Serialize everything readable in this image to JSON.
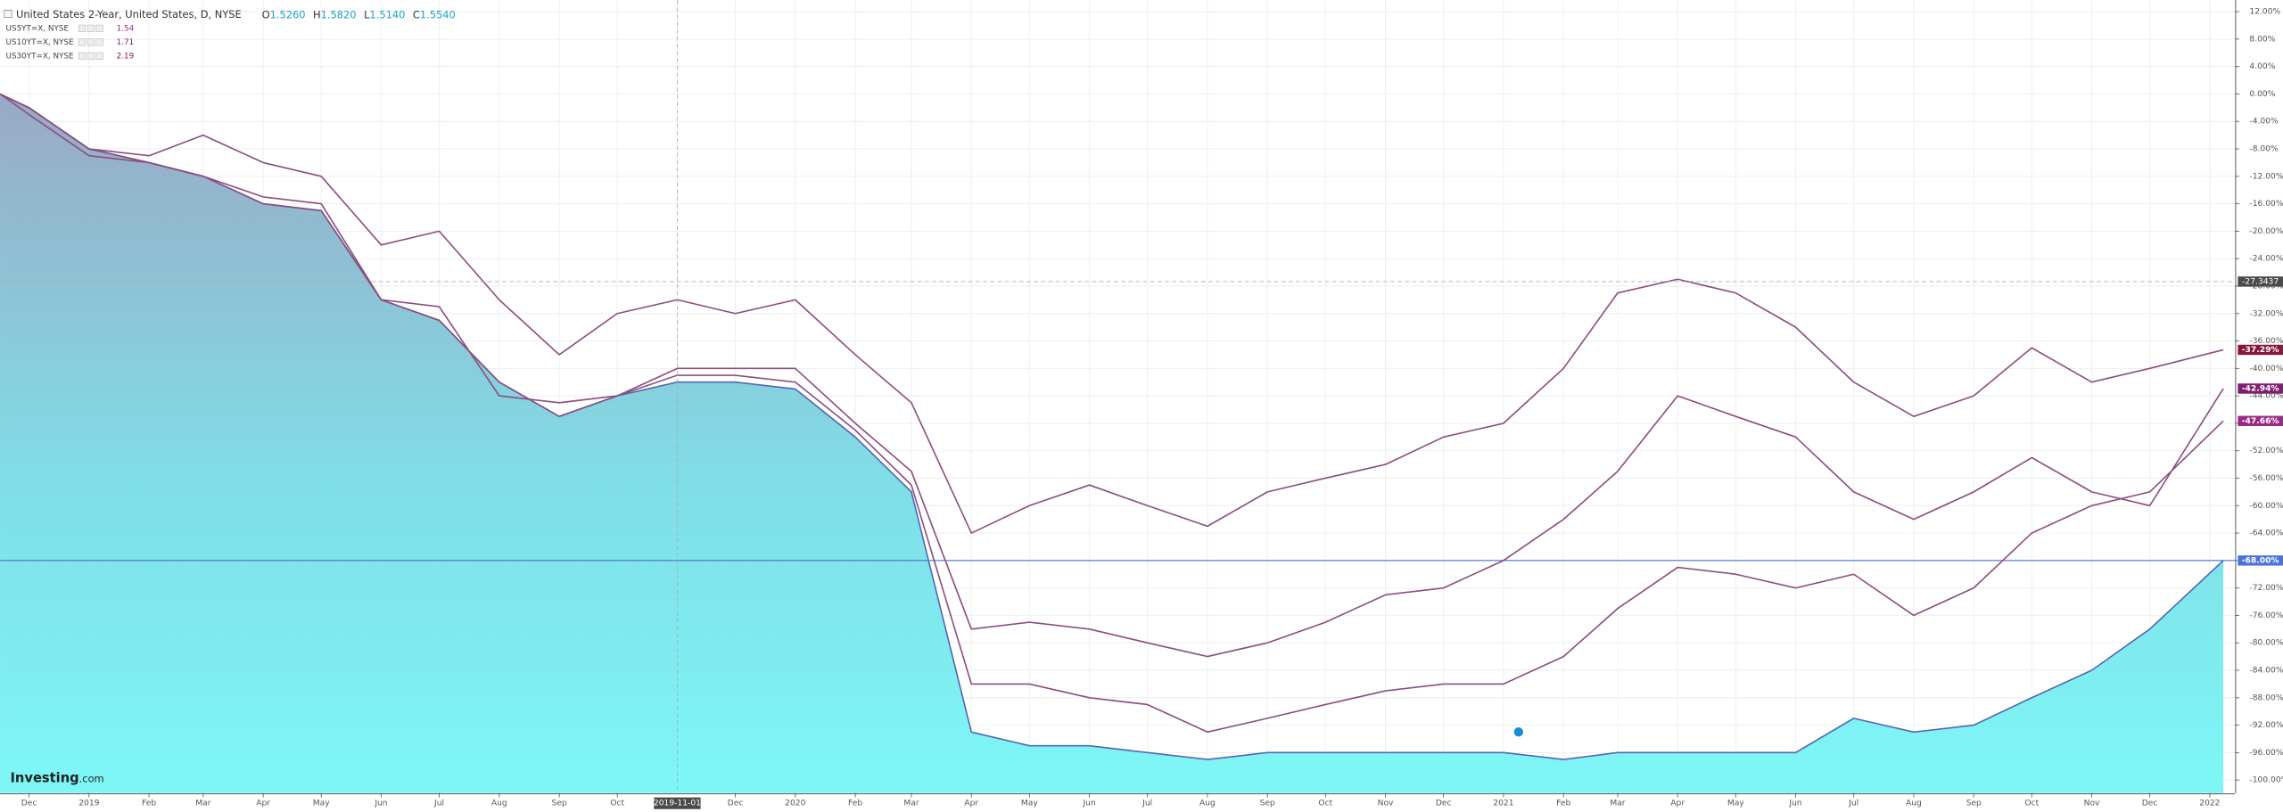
{
  "chart_data": {
    "type": "line",
    "header": {
      "open_label": "O",
      "open": "1.5260",
      "high_label": "H",
      "high": "1.5820",
      "low_label": "L",
      "low": "1.5140",
      "close_label": "C",
      "close": "1.5540"
    },
    "logo": {
      "brand": "Investing",
      "suffix": ".com"
    },
    "xlim": [
      "2018-11-16",
      "2022-01-14"
    ],
    "ylim": [
      -101.9,
      13.7
    ],
    "grid": true,
    "xticks": [
      {
        "value": "2018-12-01",
        "label": "Dec"
      },
      {
        "value": "2019-01-01",
        "label": "2019"
      },
      {
        "value": "2019-02-01",
        "label": "Feb"
      },
      {
        "value": "2019-03-01",
        "label": "Mar"
      },
      {
        "value": "2019-04-01",
        "label": "Apr"
      },
      {
        "value": "2019-05-01",
        "label": "May"
      },
      {
        "value": "2019-06-01",
        "label": "Jun"
      },
      {
        "value": "2019-07-01",
        "label": "Jul"
      },
      {
        "value": "2019-08-01",
        "label": "Aug"
      },
      {
        "value": "2019-09-01",
        "label": "Sep"
      },
      {
        "value": "2019-10-01",
        "label": "Oct"
      },
      {
        "value": "2019-12-01",
        "label": "Dec"
      },
      {
        "value": "2020-01-01",
        "label": "2020"
      },
      {
        "value": "2020-02-01",
        "label": "Feb"
      },
      {
        "value": "2020-03-01",
        "label": "Mar"
      },
      {
        "value": "2020-04-01",
        "label": "Apr"
      },
      {
        "value": "2020-05-01",
        "label": "May"
      },
      {
        "value": "2020-06-01",
        "label": "Jun"
      },
      {
        "value": "2020-07-01",
        "label": "Jul"
      },
      {
        "value": "2020-08-01",
        "label": "Aug"
      },
      {
        "value": "2020-09-01",
        "label": "Sep"
      },
      {
        "value": "2020-10-01",
        "label": "Oct"
      },
      {
        "value": "2020-11-01",
        "label": "Nov"
      },
      {
        "value": "2020-12-01",
        "label": "Dec"
      },
      {
        "value": "2021-01-01",
        "label": "2021"
      },
      {
        "value": "2021-02-01",
        "label": "Feb"
      },
      {
        "value": "2021-03-01",
        "label": "Mar"
      },
      {
        "value": "2021-04-01",
        "label": "Apr"
      },
      {
        "value": "2021-05-01",
        "label": "May"
      },
      {
        "value": "2021-06-01",
        "label": "Jun"
      },
      {
        "value": "2021-07-01",
        "label": "Jul"
      },
      {
        "value": "2021-08-01",
        "label": "Aug"
      },
      {
        "value": "2021-09-01",
        "label": "Sep"
      },
      {
        "value": "2021-10-01",
        "label": "Oct"
      },
      {
        "value": "2021-11-01",
        "label": "Nov"
      },
      {
        "value": "2021-12-01",
        "label": "Dec"
      },
      {
        "value": "2022-01-01",
        "label": "2022"
      }
    ],
    "yticks": [
      {
        "value": 12,
        "label": "12.00%"
      },
      {
        "value": 8,
        "label": "8.00%"
      },
      {
        "value": 4,
        "label": "4.00%"
      },
      {
        "value": 0,
        "label": "0.00%"
      },
      {
        "value": -4,
        "label": "-4.00%"
      },
      {
        "value": -8,
        "label": "-8.00%"
      },
      {
        "value": -12,
        "label": "-12.00%"
      },
      {
        "value": -16,
        "label": "-16.00%"
      },
      {
        "value": -20,
        "label": "-20.00%"
      },
      {
        "value": -24,
        "label": "-24.00%"
      },
      {
        "value": -28,
        "label": "-28.00%"
      },
      {
        "value": -32,
        "label": "-32.00%"
      },
      {
        "value": -36,
        "label": "-36.00%"
      },
      {
        "value": -40,
        "label": "-40.00%"
      },
      {
        "value": -44,
        "label": "-44.00%"
      },
      {
        "value": -48,
        "label": "-48.00%"
      },
      {
        "value": -52,
        "label": "-52.00%"
      },
      {
        "value": -56,
        "label": "-56.00%"
      },
      {
        "value": -60,
        "label": "-60.00%"
      },
      {
        "value": -64,
        "label": "-64.00%"
      },
      {
        "value": -68,
        "label": "-68.00%"
      },
      {
        "value": -72,
        "label": "-72.00%"
      },
      {
        "value": -76,
        "label": "-76.00%"
      },
      {
        "value": -80,
        "label": "-80.00%"
      },
      {
        "value": -84,
        "label": "-84.00%"
      },
      {
        "value": -88,
        "label": "-88.00%"
      },
      {
        "value": -92,
        "label": "-92.00%"
      },
      {
        "value": -96,
        "label": "-96.00%"
      },
      {
        "value": -100,
        "label": "-100.00%"
      }
    ],
    "crosshair": {
      "x_label": "2019-11-01",
      "y": -27.3437
    },
    "x": [
      "2018-11-16",
      "2018-12-01",
      "2019-01-01",
      "2019-02-01",
      "2019-03-01",
      "2019-04-01",
      "2019-05-01",
      "2019-06-01",
      "2019-07-01",
      "2019-08-01",
      "2019-09-01",
      "2019-10-01",
      "2019-11-01",
      "2019-12-01",
      "2020-01-01",
      "2020-02-01",
      "2020-03-01",
      "2020-04-01",
      "2020-05-01",
      "2020-06-01",
      "2020-07-01",
      "2020-08-01",
      "2020-09-01",
      "2020-10-01",
      "2020-11-01",
      "2020-12-01",
      "2021-01-01",
      "2021-02-01",
      "2021-03-01",
      "2021-04-01",
      "2021-05-01",
      "2021-06-01",
      "2021-07-01",
      "2021-08-01",
      "2021-09-01",
      "2021-10-01",
      "2021-11-01",
      "2021-12-01",
      "2022-01-08"
    ],
    "series": [
      {
        "name": "United States 2-Year, United States, D, NYSE",
        "area": true,
        "color": "#5468b0",
        "label_color": "#4a72d8",
        "end_label": "-68.00%",
        "level_line": true,
        "values": [
          0,
          -2,
          -8,
          -10,
          -12,
          -16,
          -17,
          -30,
          -33,
          -42,
          -47,
          -44,
          -42,
          -42,
          -43,
          -50,
          -58,
          -93,
          -95,
          -95,
          -96,
          -97,
          -96,
          -96,
          -96,
          -96,
          -96,
          -97,
          -96,
          -96,
          -96,
          -96,
          -91,
          -93,
          -92,
          -88,
          -84,
          -78,
          -68
        ]
      },
      {
        "name": "US5YT=X, NYSE",
        "quote": 1.54,
        "color": "#8b4f80",
        "label_color": "#9a2a86",
        "end_label": "-47.66%",
        "values": [
          0,
          -2,
          -8,
          -10,
          -12,
          -16,
          -17,
          -30,
          -33,
          -42,
          -47,
          -44,
          -41,
          -41,
          -42,
          -49,
          -57,
          -86,
          -86,
          -88,
          -89,
          -93,
          -91,
          -89,
          -87,
          -86,
          -86,
          -82,
          -75,
          -69,
          -70,
          -72,
          -70,
          -76,
          -72,
          -64,
          -60,
          -58,
          -47.66
        ]
      },
      {
        "name": "US10YT=X, NYSE",
        "quote": 1.71,
        "color": "#8b4f80",
        "label_color": "#7e1e6e",
        "end_label": "-42.94%",
        "values": [
          0,
          -3,
          -9,
          -10,
          -12,
          -15,
          -16,
          -30,
          -31,
          -44,
          -45,
          -44,
          -40,
          -40,
          -40,
          -48,
          -55,
          -78,
          -77,
          -78,
          -80,
          -82,
          -80,
          -77,
          -73,
          -72,
          -68,
          -62,
          -55,
          -44,
          -47,
          -50,
          -58,
          -62,
          -58,
          -53,
          -58,
          -60,
          -42.94
        ]
      },
      {
        "name": "US30YT=X, NYSE",
        "quote": 2.19,
        "color": "#8b4f80",
        "label_color": "#8a1538",
        "end_label": "-37.29%",
        "values": [
          0,
          -2,
          -8,
          -9,
          -6,
          -10,
          -12,
          -22,
          -20,
          -30,
          -38,
          -32,
          -30,
          -32,
          -30,
          -38,
          -45,
          -64,
          -60,
          -57,
          -60,
          -63,
          -58,
          -56,
          -54,
          -50,
          -48,
          -40,
          -29,
          -27,
          -29,
          -34,
          -42,
          -47,
          -44,
          -37,
          -42,
          -40,
          -37.29
        ]
      }
    ]
  }
}
